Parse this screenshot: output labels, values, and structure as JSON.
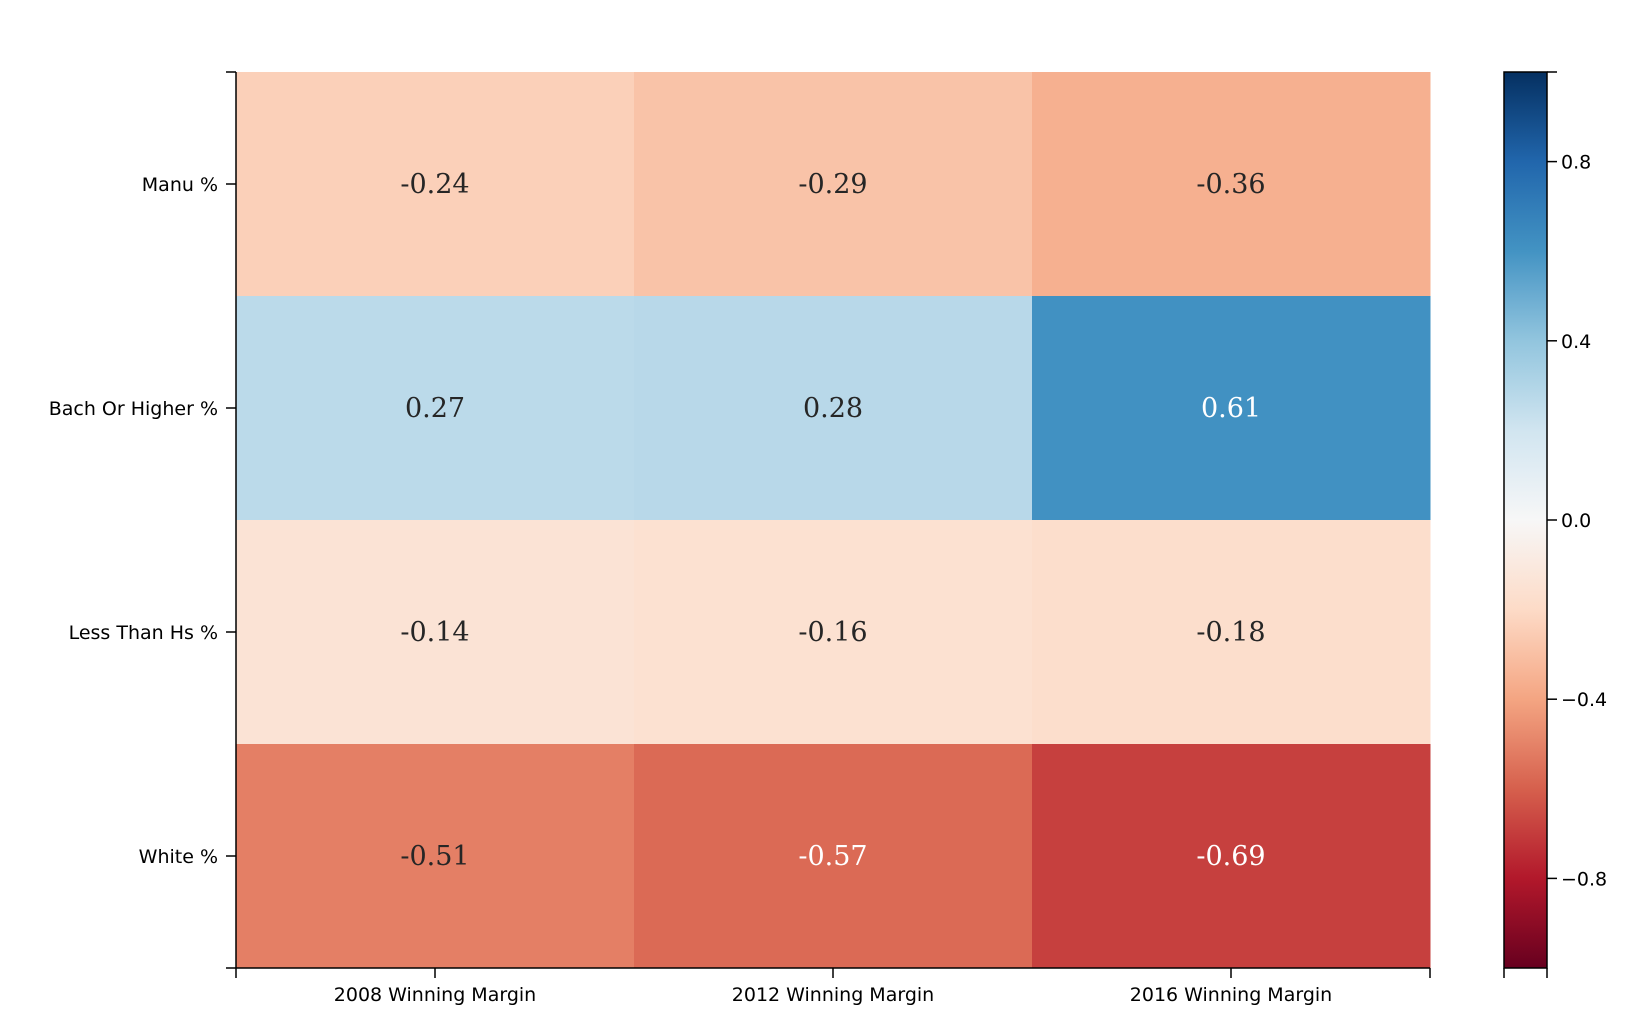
{
  "chart_data": {
    "type": "heatmap",
    "title": "",
    "xlabel": "",
    "ylabel": "",
    "x_categories": [
      "2008 Winning Margin",
      "2012 Winning Margin",
      "2016 Winning Margin"
    ],
    "y_categories": [
      "Manu %",
      "Bach Or Higher %",
      "Less Than Hs %",
      "White %"
    ],
    "values": [
      [
        -0.24,
        -0.29,
        -0.36
      ],
      [
        0.27,
        0.28,
        0.61
      ],
      [
        -0.14,
        -0.16,
        -0.18
      ],
      [
        -0.51,
        -0.57,
        -0.69
      ]
    ],
    "value_labels": [
      [
        "-0.24",
        "-0.29",
        "-0.36"
      ],
      [
        "0.27",
        "0.28",
        "0.61"
      ],
      [
        "-0.14",
        "-0.16",
        "-0.18"
      ],
      [
        "-0.51",
        "-0.57",
        "-0.69"
      ]
    ],
    "colormap": "RdBu",
    "vmin": -1,
    "vmax": 1,
    "colorbar": {
      "ticks": [
        0.8,
        0.4,
        0.0,
        -0.4,
        -0.8
      ],
      "tick_labels": [
        "0.8",
        "0.4",
        "0.0",
        "−0.4",
        "−0.8"
      ],
      "placement": "right"
    },
    "grid": false
  }
}
